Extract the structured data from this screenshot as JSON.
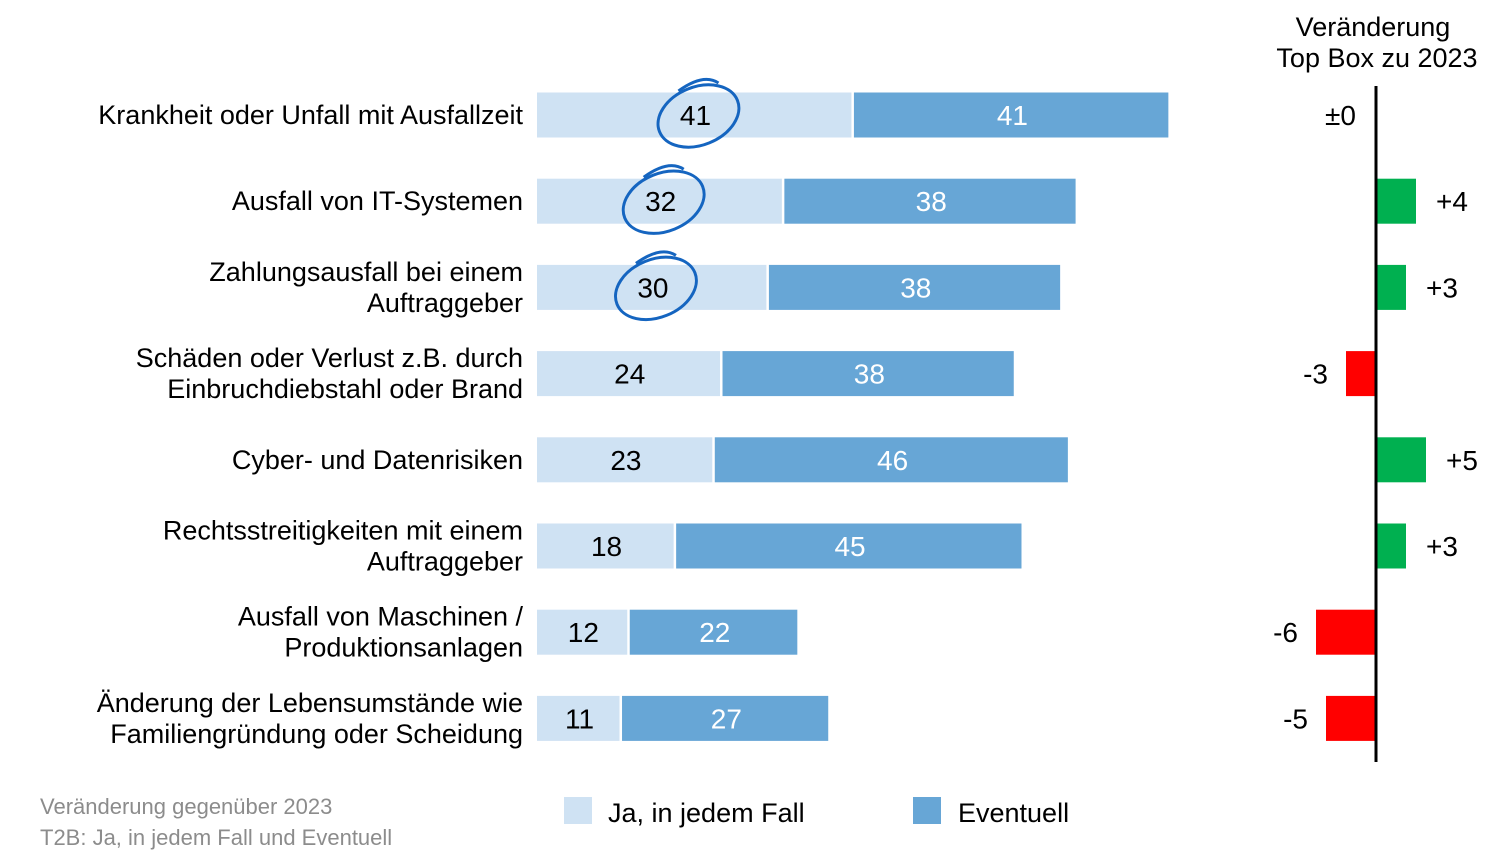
{
  "chart_data": [
    {
      "type": "bar",
      "stacked": true,
      "orientation": "horizontal",
      "categories": [
        [
          "Krankheit oder Unfall mit Ausfallzeit"
        ],
        [
          "Ausfall von IT-Systemen"
        ],
        [
          "Zahlungsausfall bei einem",
          "Auftraggeber"
        ],
        [
          "Schäden oder Verlust z.B. durch",
          "Einbruchdiebstahl oder Brand"
        ],
        [
          "Cyber- und Datenrisiken"
        ],
        [
          "Rechtsstreitigkeiten mit einem",
          "Auftraggeber"
        ],
        [
          "Ausfall von Maschinen /",
          "Produktionsanlagen"
        ],
        [
          "Änderung der Lebensumstände wie",
          "Familiengründung oder Scheidung"
        ]
      ],
      "series": [
        {
          "name": "Ja, in jedem Fall",
          "color": "#cfe2f3",
          "values": [
            41,
            32,
            30,
            24,
            23,
            18,
            12,
            11
          ]
        },
        {
          "name": "Eventuell",
          "color": "#67a6d6",
          "values": [
            41,
            38,
            38,
            38,
            46,
            45,
            22,
            27
          ]
        }
      ],
      "circled_rows": [
        0,
        1,
        2
      ],
      "legend": "bottom",
      "grid": false
    },
    {
      "type": "bar",
      "orientation": "horizontal",
      "title": [
        "Veränderung",
        "Top Box zu 2023"
      ],
      "values": [
        0,
        4,
        3,
        -3,
        5,
        3,
        -6,
        -5
      ],
      "labels": [
        "±0",
        "+4",
        "+3",
        "-3",
        "+5",
        "+3",
        "-6",
        "-5"
      ],
      "positive_color": "#00b050",
      "negative_color": "#ff0000"
    }
  ],
  "footnotes": [
    "Veränderung gegenüber 2023",
    "T2B: Ja, in jedem Fall und Eventuell"
  ]
}
